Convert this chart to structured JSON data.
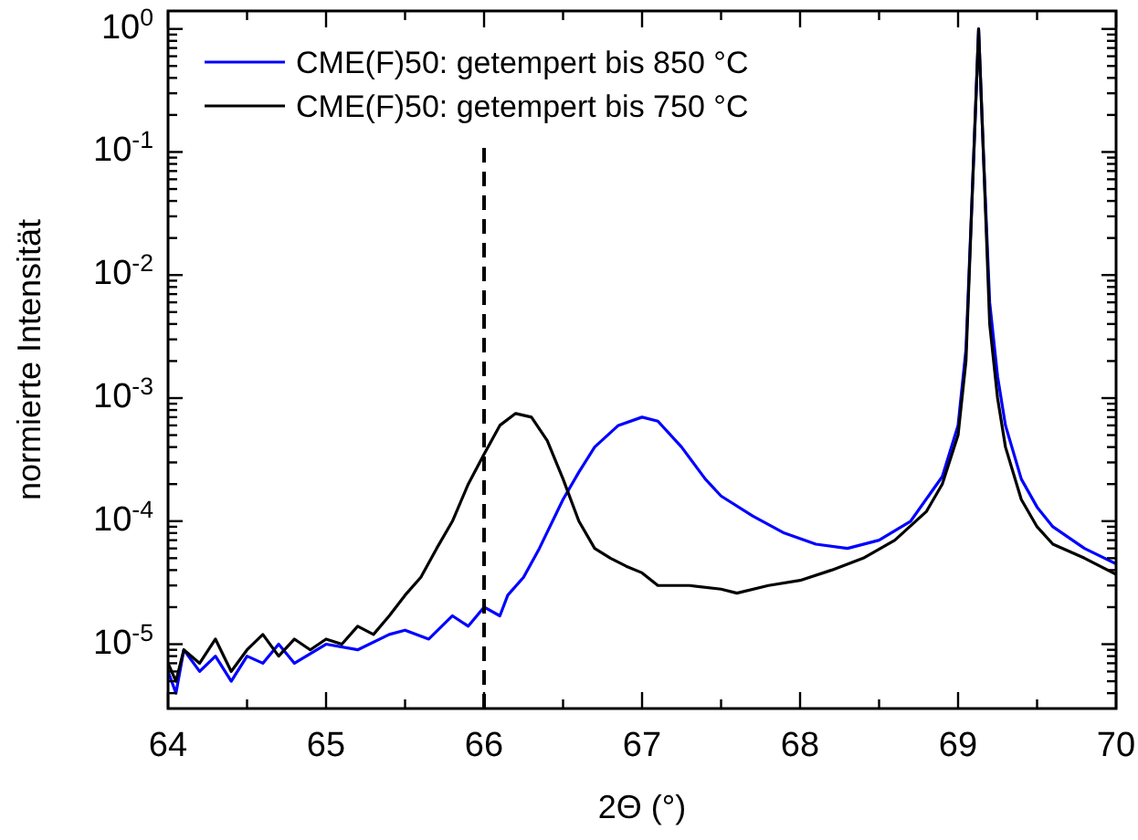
{
  "chart_data": {
    "type": "line",
    "xlabel": "2Θ (°)",
    "ylabel": "normierte Intensität",
    "log": "y",
    "grid": false,
    "legend": "top left",
    "marker": "none",
    "line_style": "solid",
    "xlim": [
      64,
      70
    ],
    "ylim": [
      3e-06,
      1.4
    ],
    "xticks": [
      64,
      {
        "value": 64.5,
        "label": null
      },
      65,
      {
        "value": 65.5,
        "label": null
      },
      66,
      {
        "value": 66.5,
        "label": null
      },
      67,
      {
        "value": 67.5,
        "label": null
      },
      68,
      {
        "value": 68.5,
        "label": null
      },
      69,
      {
        "value": 69.5,
        "label": null
      },
      70
    ],
    "yticks": [
      {
        "value": 4e-06,
        "label": null
      },
      {
        "value": 5e-06,
        "label": null
      },
      {
        "value": 6e-06,
        "label": null
      },
      {
        "value": 7e-06,
        "label": null
      },
      {
        "value": 8e-06,
        "label": null
      },
      {
        "value": 9e-06,
        "label": null
      },
      {
        "value": 1e-05,
        "label": "10$^{-5}$"
      },
      {
        "value": 2e-05,
        "label": null
      },
      {
        "value": 3e-05,
        "label": null
      },
      {
        "value": 4e-05,
        "label": null
      },
      {
        "value": 5e-05,
        "label": null
      },
      {
        "value": 6e-05,
        "label": null
      },
      {
        "value": 7e-05,
        "label": null
      },
      {
        "value": 8e-05,
        "label": null
      },
      {
        "value": 9e-05,
        "label": null
      },
      {
        "value": 0.0001,
        "label": "10$^{-4}$"
      },
      {
        "value": 0.0002,
        "label": null
      },
      {
        "value": 0.0003,
        "label": null
      },
      {
        "value": 0.0004,
        "label": null
      },
      {
        "value": 0.0005,
        "label": null
      },
      {
        "value": 0.0006,
        "label": null
      },
      {
        "value": 0.0007,
        "label": null
      },
      {
        "value": 0.0008,
        "label": null
      },
      {
        "value": 0.0009,
        "label": null
      },
      {
        "value": 0.001,
        "label": "10$^{-3}$"
      },
      {
        "value": 0.002,
        "label": null
      },
      {
        "value": 0.003,
        "label": null
      },
      {
        "value": 0.004,
        "label": null
      },
      {
        "value": 0.005,
        "label": null
      },
      {
        "value": 0.006,
        "label": null
      },
      {
        "value": 0.007,
        "label": null
      },
      {
        "value": 0.008,
        "label": null
      },
      {
        "value": 0.009,
        "label": null
      },
      {
        "value": 0.01,
        "label": "10$^{-2}$"
      },
      {
        "value": 0.02,
        "label": null
      },
      {
        "value": 0.03,
        "label": null
      },
      {
        "value": 0.04,
        "label": null
      },
      {
        "value": 0.05,
        "label": null
      },
      {
        "value": 0.06,
        "label": null
      },
      {
        "value": 0.07,
        "label": null
      },
      {
        "value": 0.08,
        "label": null
      },
      {
        "value": 0.09,
        "label": null
      },
      {
        "value": 0.1,
        "label": "10$^{-1}$"
      },
      {
        "value": 0.2,
        "label": null
      },
      {
        "value": 0.3,
        "label": null
      },
      {
        "value": 0.4,
        "label": null
      },
      {
        "value": 0.5,
        "label": null
      },
      {
        "value": 0.6,
        "label": null
      },
      {
        "value": 0.7,
        "label": null
      },
      {
        "value": 0.8,
        "label": null
      },
      {
        "value": 0.9,
        "label": null
      },
      {
        "value": 1,
        "label": "10$^{0}$"
      }
    ],
    "ref_lines": [
      {
        "axis": "x",
        "value": 66,
        "color": "#000000",
        "line_style": "dashed"
      }
    ],
    "series": [
      {
        "name": "CME(F)50: getempert bis 850 °C",
        "color": "#0000ff",
        "x": [
          64,
          64.05,
          64.1,
          64.2,
          64.3,
          64.4,
          64.5,
          64.6,
          64.7,
          64.8,
          65,
          65.2,
          65.4,
          65.5,
          65.65,
          65.8,
          65.9,
          66,
          66.1,
          66.15,
          66.25,
          66.35,
          66.5,
          66.6,
          66.7,
          66.85,
          67,
          67.1,
          67.25,
          67.4,
          67.5,
          67.7,
          67.9,
          68.1,
          68.3,
          68.5,
          68.7,
          68.9,
          69,
          69.05,
          69.1,
          69.13,
          69.16,
          69.2,
          69.25,
          69.3,
          69.4,
          69.5,
          69.6,
          69.8,
          70
        ],
        "values": [
          6e-06,
          4e-06,
          9e-06,
          6e-06,
          8e-06,
          5e-06,
          8e-06,
          7e-06,
          1e-05,
          7e-06,
          1e-05,
          9e-06,
          1.2e-05,
          1.3e-05,
          1.1e-05,
          1.7e-05,
          1.4e-05,
          2e-05,
          1.7e-05,
          2.5e-05,
          3.5e-05,
          6e-05,
          0.00015,
          0.00025,
          0.0004,
          0.0006,
          0.0007,
          0.00065,
          0.0004,
          0.00022,
          0.00016,
          0.00011,
          8e-05,
          6.5e-05,
          6e-05,
          7e-05,
          0.0001,
          0.00023,
          0.0006,
          0.0025,
          0.1,
          1,
          0.1,
          0.006,
          0.0015,
          0.0006,
          0.00022,
          0.00013,
          9e-05,
          6e-05,
          4.5e-05
        ]
      },
      {
        "name": "CME(F)50: getempert bis 750 °C",
        "color": "#000000",
        "x": [
          64,
          64.05,
          64.1,
          64.2,
          64.3,
          64.4,
          64.5,
          64.6,
          64.7,
          64.8,
          64.9,
          65,
          65.1,
          65.2,
          65.3,
          65.4,
          65.5,
          65.6,
          65.7,
          65.8,
          65.9,
          66,
          66.1,
          66.2,
          66.3,
          66.4,
          66.5,
          66.6,
          66.7,
          66.8,
          66.9,
          67,
          67.1,
          67.3,
          67.5,
          67.6,
          67.8,
          68,
          68.2,
          68.4,
          68.6,
          68.8,
          68.9,
          69,
          69.05,
          69.1,
          69.13,
          69.16,
          69.2,
          69.25,
          69.3,
          69.4,
          69.5,
          69.6,
          69.8,
          70
        ],
        "values": [
          7e-06,
          5e-06,
          9e-06,
          7e-06,
          1.1e-05,
          6e-06,
          9e-06,
          1.2e-05,
          8e-06,
          1.1e-05,
          9e-06,
          1.1e-05,
          1e-05,
          1.4e-05,
          1.2e-05,
          1.7e-05,
          2.5e-05,
          3.5e-05,
          6e-05,
          0.0001,
          0.0002,
          0.00035,
          0.0006,
          0.00075,
          0.0007,
          0.00045,
          0.00022,
          0.0001,
          6e-05,
          5e-05,
          4.3e-05,
          3.8e-05,
          3e-05,
          3e-05,
          2.8e-05,
          2.6e-05,
          3e-05,
          3.3e-05,
          4e-05,
          5e-05,
          7e-05,
          0.00012,
          0.0002,
          0.0005,
          0.002,
          0.1,
          1,
          0.1,
          0.004,
          0.001,
          0.0004,
          0.00015,
          9e-05,
          6.5e-05,
          5e-05,
          3.7e-05
        ]
      }
    ]
  }
}
